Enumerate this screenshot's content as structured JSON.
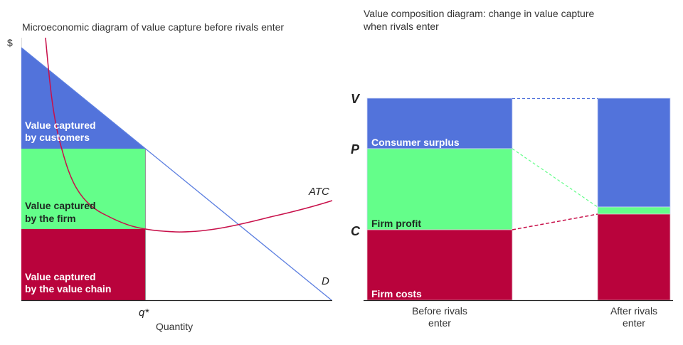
{
  "colors": {
    "blue": "#5273db",
    "green": "#64fe8a",
    "red": "#b9033c",
    "atc": "#c8104a",
    "demand": "#5b7ee0"
  },
  "left": {
    "title": "Microeconomic diagram of value capture before rivals enter",
    "y_axis_label": "$",
    "x_axis_label": "Quantity",
    "q_label": "q*",
    "atc_label": "ATC",
    "demand_label": "D",
    "regions": {
      "customers": [
        "Value captured",
        "by customers"
      ],
      "firm": [
        "Value captured",
        "by the firm"
      ],
      "chain": [
        "Value captured",
        "by the value chain"
      ]
    }
  },
  "right": {
    "title": [
      "Value composition diagram: change in value capture",
      "when rivals enter"
    ],
    "levels": {
      "v": "V",
      "p": "P",
      "c": "C"
    },
    "segments": {
      "consumer": "Consumer surplus",
      "profit": "Firm profit",
      "costs": "Firm costs"
    },
    "categories": [
      [
        "Before rivals",
        "enter"
      ],
      [
        "After rivals",
        "enter"
      ]
    ]
  }
}
